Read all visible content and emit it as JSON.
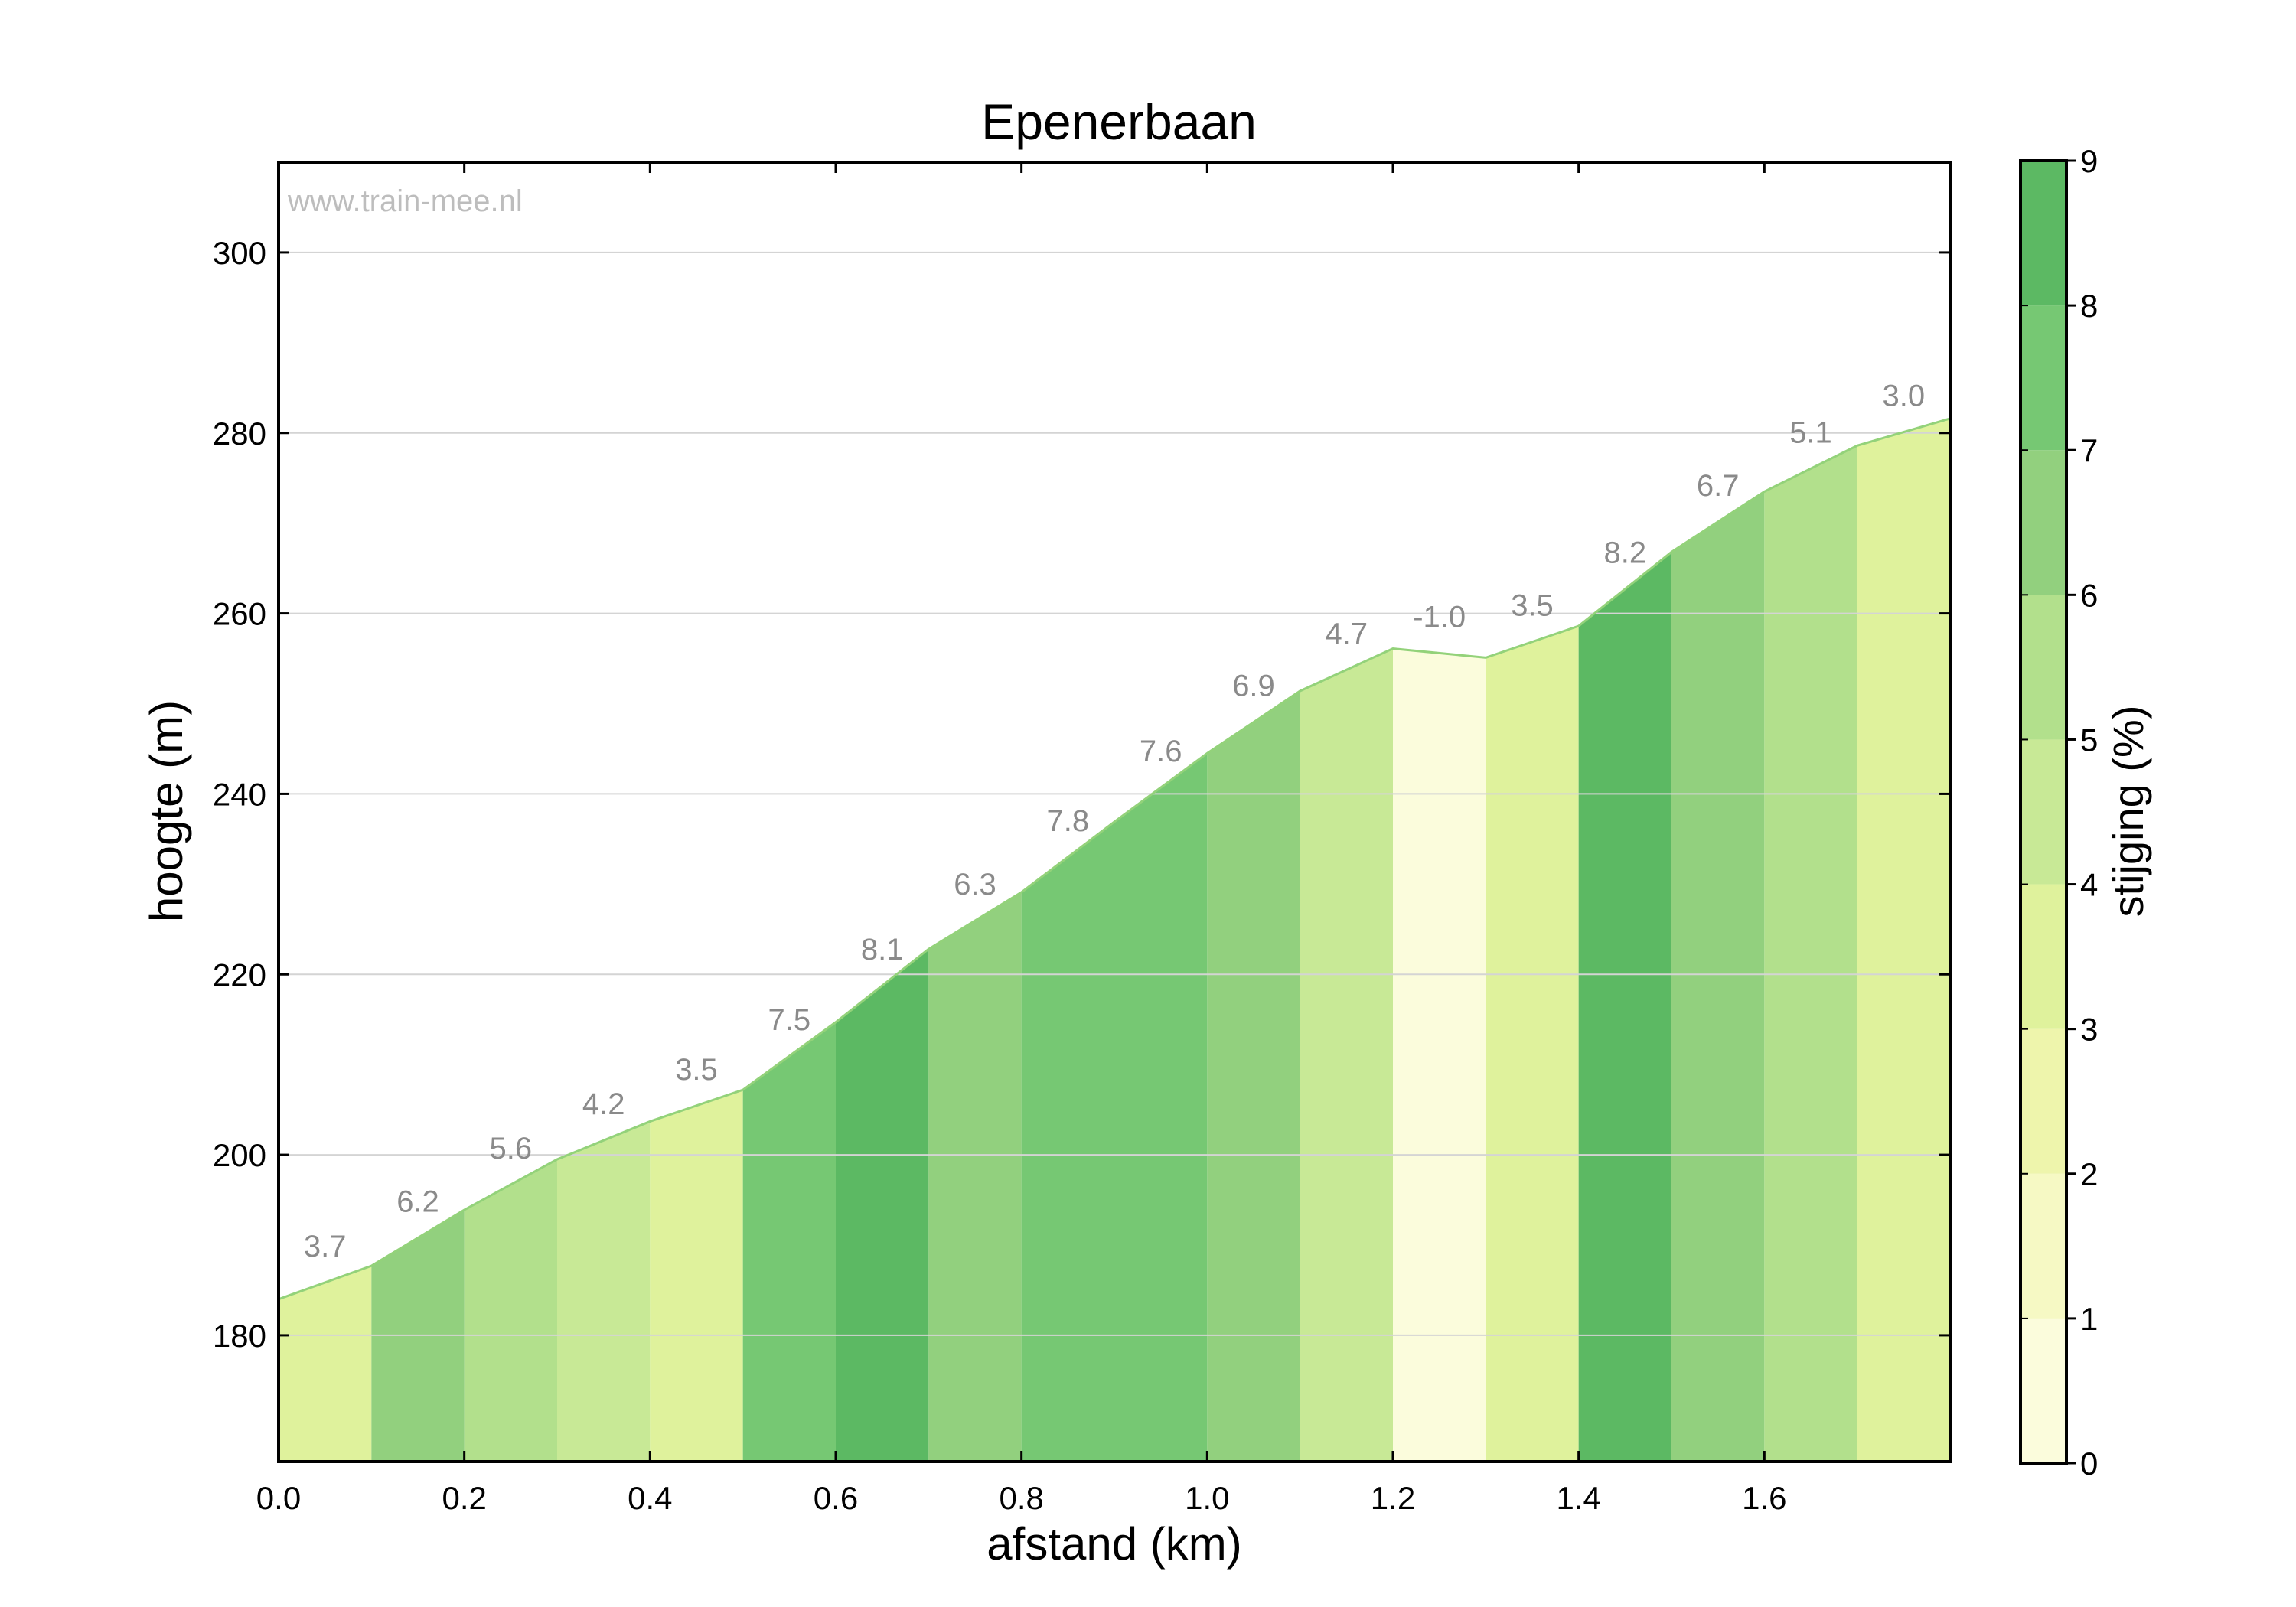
{
  "chart_data": {
    "type": "area",
    "title": "Epenerbaan",
    "watermark": "www.train-mee.nl",
    "xlabel": "afstand (km)",
    "ylabel": "hoogte (m)",
    "xlim": [
      0.0,
      1.8
    ],
    "ylim": [
      166,
      310
    ],
    "xticks": [
      "0.0",
      "0.2",
      "0.4",
      "0.6",
      "0.8",
      "1.0",
      "1.2",
      "1.4",
      "1.6"
    ],
    "yticks": [
      "180",
      "200",
      "220",
      "240",
      "260",
      "280",
      "300"
    ],
    "grid": true,
    "x": [
      0.0,
      0.1,
      0.2,
      0.3,
      0.4,
      0.5,
      0.6,
      0.7,
      0.8,
      0.9,
      1.0,
      1.1,
      1.2,
      1.3,
      1.4,
      1.5,
      1.6,
      1.7,
      1.8
    ],
    "elevation": [
      184.0,
      187.7,
      193.9,
      199.5,
      203.7,
      207.2,
      214.7,
      222.8,
      229.1,
      236.9,
      244.5,
      251.4,
      256.1,
      255.1,
      258.6,
      266.8,
      273.5,
      278.6,
      281.6
    ],
    "segment_labels": [
      "3.7",
      "6.2",
      "5.6",
      "4.2",
      "3.5",
      "7.5",
      "8.1",
      "6.3",
      "7.8",
      "7.6",
      "6.9",
      "4.7",
      "-1.0",
      "3.5",
      "8.2",
      "6.7",
      "5.1",
      "3.0"
    ],
    "gradients": [
      3.7,
      6.2,
      5.6,
      4.2,
      3.5,
      7.5,
      8.1,
      6.3,
      7.8,
      7.6,
      6.9,
      4.7,
      -1.0,
      3.5,
      8.2,
      6.7,
      5.1,
      3.0
    ],
    "colorbar": {
      "label": "stijging (%)",
      "range": [
        0,
        9
      ],
      "ticks": [
        "0",
        "1",
        "2",
        "3",
        "4",
        "5",
        "6",
        "7",
        "8",
        "9"
      ],
      "colors": [
        "#fbfcdc",
        "#f6f9c4",
        "#eef5ac",
        "#dff29c",
        "#c8e996",
        "#b2e08c",
        "#92d07e",
        "#76c873",
        "#5cb963"
      ]
    },
    "line_color": "#93d27a",
    "label_color": "#8a8a8a",
    "watermark_color": "#bdbdbd"
  }
}
